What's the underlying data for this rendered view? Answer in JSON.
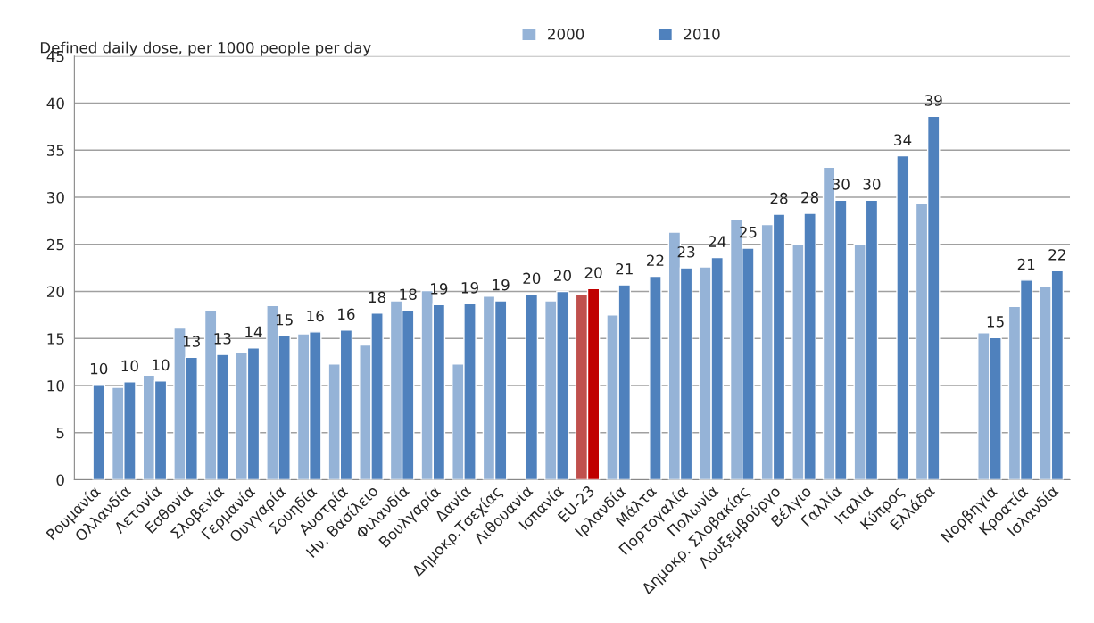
{
  "chart_data": {
    "type": "bar",
    "ylabel": "Defined daily dose, per 1000 people per day",
    "categories": [
      "Ρουμανία",
      "Ολλανδία",
      "Λετονία",
      "Εσθονία",
      "Σλοβενία",
      "Γερμανία",
      "Ουγγαρία",
      "Σουηδία",
      "Αυστρία",
      "Ην. Βασίλειο",
      "Φιλανδία",
      "Βουλγαρία",
      "Δανία",
      "Δημοκρ.Τσεχίας",
      "Λιθουανία",
      "Ισπανία",
      "EU-23",
      "Ιρλανδία",
      "Μάλτα",
      "Πορτογαλία",
      "Πολωνία",
      "Δημοκρ. Σλοβακίας",
      "Λουξεμβούργο",
      "Βέλγιο",
      "Γαλλία",
      "Ιταλία",
      "Κύπρος",
      "Ελλάδα",
      null,
      "Νορβηγία",
      "Κροατία",
      "Ισλανδία"
    ],
    "series": [
      {
        "name": "2000",
        "color": "#95b3d7",
        "colors": [
          "#95b3d7",
          "#95b3d7",
          "#95b3d7",
          "#95b3d7",
          "#95b3d7",
          "#95b3d7",
          "#95b3d7",
          "#95b3d7",
          "#95b3d7",
          "#95b3d7",
          "#95b3d7",
          "#95b3d7",
          "#95b3d7",
          "#95b3d7",
          "#95b3d7",
          "#95b3d7",
          "#c0504d",
          "#95b3d7",
          "#95b3d7",
          "#95b3d7",
          "#95b3d7",
          "#95b3d7",
          "#95b3d7",
          "#95b3d7",
          "#95b3d7",
          "#95b3d7",
          "#95b3d7",
          "#95b3d7",
          "#95b3d7",
          "#95b3d7",
          "#95b3d7",
          "#95b3d7"
        ],
        "values": [
          null,
          9.8,
          11.1,
          16.1,
          18.0,
          13.5,
          18.5,
          15.5,
          12.3,
          14.3,
          19.0,
          20.1,
          12.3,
          19.5,
          null,
          19.0,
          19.7,
          17.5,
          null,
          26.3,
          22.6,
          27.6,
          27.1,
          25.0,
          33.2,
          25.0,
          null,
          29.4,
          null,
          15.6,
          18.4,
          20.5
        ]
      },
      {
        "name": "2010",
        "color": "#4f81bd",
        "colors": [
          "#4f81bd",
          "#4f81bd",
          "#4f81bd",
          "#4f81bd",
          "#4f81bd",
          "#4f81bd",
          "#4f81bd",
          "#4f81bd",
          "#4f81bd",
          "#4f81bd",
          "#4f81bd",
          "#4f81bd",
          "#4f81bd",
          "#4f81bd",
          "#4f81bd",
          "#4f81bd",
          "#c00000",
          "#4f81bd",
          "#4f81bd",
          "#4f81bd",
          "#4f81bd",
          "#4f81bd",
          "#4f81bd",
          "#4f81bd",
          "#4f81bd",
          "#4f81bd",
          "#4f81bd",
          "#4f81bd",
          "#4f81bd",
          "#4f81bd",
          "#4f81bd",
          "#4f81bd"
        ],
        "values": [
          10.1,
          10.4,
          10.5,
          13.0,
          13.3,
          14.0,
          15.3,
          15.7,
          15.9,
          17.7,
          18.0,
          18.6,
          18.7,
          19.0,
          19.7,
          20.0,
          20.3,
          20.7,
          21.6,
          22.5,
          23.6,
          24.6,
          28.2,
          28.3,
          29.7,
          29.7,
          34.4,
          38.6,
          null,
          15.1,
          21.2,
          22.2
        ],
        "value_labels": [
          "10",
          "10",
          "10",
          "13",
          "13",
          "14",
          "15",
          "16",
          "16",
          "18",
          "18",
          "19",
          "19",
          "19",
          "20",
          "20",
          "20",
          "21",
          "22",
          "23",
          "24",
          "25",
          "28",
          "28",
          "30",
          "30",
          "34",
          "39",
          null,
          "15",
          "21",
          "22"
        ]
      }
    ],
    "ylim": [
      0,
      45
    ],
    "yticks": [
      0,
      5,
      10,
      15,
      20,
      25,
      30,
      35,
      40,
      45
    ],
    "grid": "y",
    "legend": "top"
  }
}
